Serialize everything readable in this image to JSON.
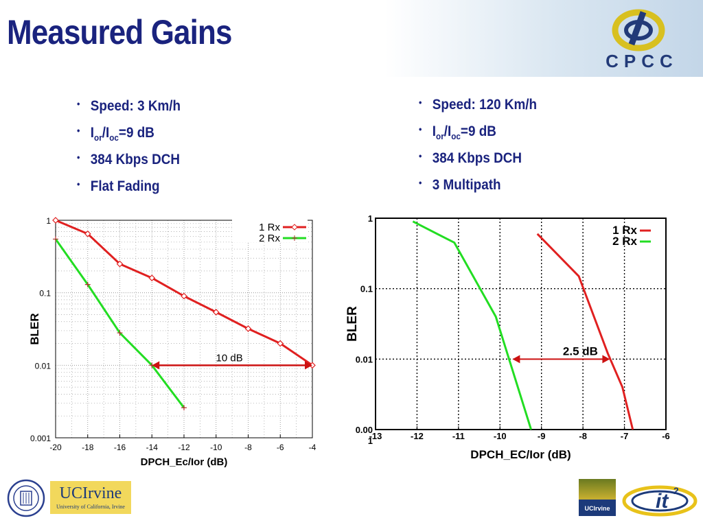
{
  "slide": {
    "title": "Measured Gains"
  },
  "bullets_left": [
    {
      "text": "Speed: 3 Km/h"
    },
    {
      "text_parts": [
        "I",
        "or",
        "/I",
        "oc",
        "=9 dB"
      ]
    },
    {
      "text": "384 Kbps DCH"
    },
    {
      "text": "Flat Fading"
    }
  ],
  "bullets_right": [
    {
      "text": "Speed: 120 Km/h"
    },
    {
      "text_parts": [
        "I",
        "or",
        "/I",
        "oc",
        "=9 dB"
      ]
    },
    {
      "text": "384 Kbps DCH"
    },
    {
      "text": "3 Multipath"
    }
  ],
  "logos": {
    "cpcc_text": "CPCC",
    "ucirvine_text": "UCIrvine",
    "ucirvine_sub": "University of California, Irvine",
    "ucirvine_small": "UCIrvine",
    "it2_text": "it",
    "it2_sup": "2"
  },
  "colors": {
    "title": "#1a237e",
    "series_1rx": "#e02020",
    "series_2rx": "#22dd22",
    "annotation": "#cc1111"
  },
  "chart_data": [
    {
      "type": "line",
      "xlabel": "DPCH_Ec/Ior (dB)",
      "ylabel": "BLER",
      "yscale": "log",
      "xlim": [
        -20,
        -4
      ],
      "ylim": [
        0.001,
        1
      ],
      "xticks": [
        -20,
        -18,
        -16,
        -14,
        -12,
        -10,
        -8,
        -6,
        -4
      ],
      "ytick_labels": [
        "1",
        "0.1",
        "0.01",
        "0.001"
      ],
      "grid": true,
      "legend": "top-right",
      "series": [
        {
          "name": "1 Rx",
          "x": [
            -20,
            -18,
            -16,
            -14,
            -12,
            -10,
            -8,
            -6,
            -4
          ],
          "y": [
            1,
            0.65,
            0.25,
            0.16,
            0.09,
            0.054,
            0.032,
            0.02,
            0.01
          ]
        },
        {
          "name": "2 Rx",
          "x": [
            -20,
            -18,
            -16,
            -14,
            -12
          ],
          "y": [
            0.55,
            0.13,
            0.028,
            0.01,
            0.0026
          ]
        }
      ],
      "annotation": {
        "text": "10 dB",
        "x_from": -14,
        "x_to": -4,
        "y": 0.01
      }
    },
    {
      "type": "line",
      "xlabel": "DPCH_EC/Ior (dB)",
      "ylabel": "BLER",
      "yscale": "log",
      "xlim": [
        -13,
        -6
      ],
      "ylim": [
        0.001,
        1
      ],
      "xticks": [
        -13,
        -12,
        -11,
        -10,
        -9,
        -8,
        -7,
        -6
      ],
      "ytick_labels": [
        "1",
        "0.1",
        "0.01",
        "0.00\n1"
      ],
      "grid": true,
      "legend": "top-right",
      "series": [
        {
          "name": "1 Rx",
          "x": [
            -9.1,
            -8.1,
            -7.4,
            -7.05,
            -6.8
          ],
          "y": [
            0.6,
            0.15,
            0.012,
            0.004,
            0.001
          ]
        },
        {
          "name": "2 Rx",
          "x": [
            -12.1,
            -11.1,
            -10.1,
            -9.25
          ],
          "y": [
            0.9,
            0.45,
            0.04,
            0.001
          ]
        }
      ],
      "annotation": {
        "text": "2.5 dB",
        "x_from": -9.7,
        "x_to": -7.35,
        "y": 0.01
      }
    }
  ]
}
